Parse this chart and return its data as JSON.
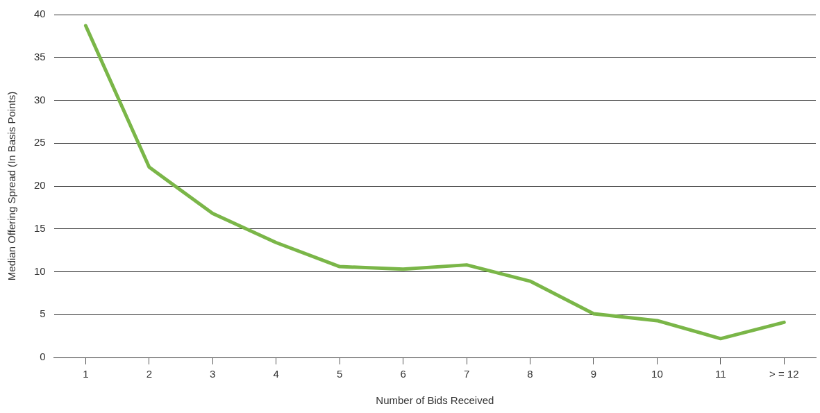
{
  "chart_data": {
    "type": "line",
    "xlabel": "Number of Bids Received",
    "ylabel": "Median Offering Spread (In Basis Points)",
    "categories": [
      "1",
      "2",
      "3",
      "4",
      "5",
      "6",
      "7",
      "8",
      "9",
      "10",
      "11",
      "> = 12"
    ],
    "series": [
      {
        "color": "#7ab648",
        "values": [
          38.7,
          22.2,
          16.8,
          13.4,
          10.6,
          10.3,
          10.8,
          8.9,
          5.1,
          4.3,
          2.2,
          4.1
        ]
      }
    ],
    "ylim": [
      0,
      40
    ],
    "yticks": [
      0,
      5,
      10,
      15,
      20,
      25,
      30,
      35,
      40
    ],
    "grid": "y",
    "legend": false,
    "marker": "none",
    "line_style": "solid"
  }
}
